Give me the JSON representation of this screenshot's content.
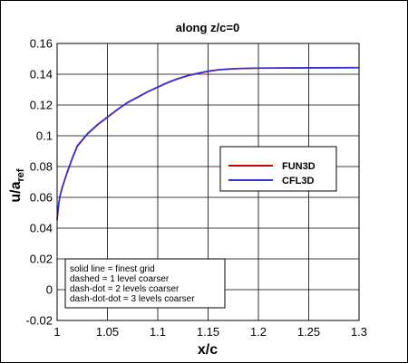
{
  "chart_data": {
    "type": "line",
    "title": "along z/c=0",
    "xlabel": "x/c",
    "ylabel_main": "u/a",
    "ylabel_sub": "ref",
    "xlim": [
      1.0,
      1.3
    ],
    "ylim": [
      -0.02,
      0.16
    ],
    "xticks": [
      "1",
      "1.05",
      "1.1",
      "1.15",
      "1.2",
      "1.25",
      "1.3"
    ],
    "xtick_values": [
      1.0,
      1.05,
      1.1,
      1.15,
      1.2,
      1.25,
      1.3
    ],
    "yticks": [
      "-0.02",
      "0",
      "0.02",
      "0.04",
      "0.06",
      "0.08",
      "0.1",
      "0.12",
      "0.14",
      "0.16"
    ],
    "ytick_values": [
      -0.02,
      0.0,
      0.02,
      0.04,
      0.06,
      0.08,
      0.1,
      0.12,
      0.14,
      0.16
    ],
    "grid": true,
    "legend_placement": "right-middle",
    "series": [
      {
        "name": "FUN3D",
        "color": "#cc0000",
        "x": [
          1.0,
          1.0015,
          1.003,
          1.005,
          1.0075,
          1.01,
          1.015,
          1.02,
          1.03,
          1.04,
          1.05,
          1.06,
          1.07,
          1.08,
          1.09,
          1.1,
          1.11,
          1.12,
          1.13,
          1.14,
          1.15,
          1.16,
          1.17,
          1.18,
          1.19,
          1.2,
          1.22,
          1.25,
          1.3
        ],
        "y": [
          0.045,
          0.055,
          0.061,
          0.066,
          0.071,
          0.076,
          0.085,
          0.093,
          0.101,
          0.107,
          0.112,
          0.117,
          0.1215,
          0.125,
          0.1285,
          0.1315,
          0.1345,
          0.137,
          0.139,
          0.1405,
          0.1418,
          0.1428,
          0.1433,
          0.1436,
          0.1438,
          0.1439,
          0.144,
          0.1441,
          0.1442
        ]
      },
      {
        "name": "CFL3D",
        "color": "#3333dd",
        "x": [
          1.0,
          1.0015,
          1.003,
          1.005,
          1.0075,
          1.01,
          1.015,
          1.02,
          1.03,
          1.04,
          1.05,
          1.06,
          1.07,
          1.08,
          1.09,
          1.1,
          1.11,
          1.12,
          1.13,
          1.14,
          1.15,
          1.16,
          1.17,
          1.18,
          1.19,
          1.2,
          1.22,
          1.25,
          1.3
        ],
        "y": [
          0.046,
          0.0555,
          0.0615,
          0.0665,
          0.0715,
          0.0765,
          0.0855,
          0.0935,
          0.1013,
          0.1073,
          0.1122,
          0.1172,
          0.1217,
          0.1252,
          0.1287,
          0.1317,
          0.1347,
          0.1372,
          0.1392,
          0.1407,
          0.142,
          0.1429,
          0.1434,
          0.1437,
          0.1439,
          0.144,
          0.1441,
          0.1442,
          0.1443
        ]
      }
    ],
    "note_lines": [
      "solid line = finest grid",
      "dashed = 1 level coarser",
      "dash-dot = 2 levels coarser",
      "dash-dot-dot = 3 levels coarser"
    ]
  }
}
